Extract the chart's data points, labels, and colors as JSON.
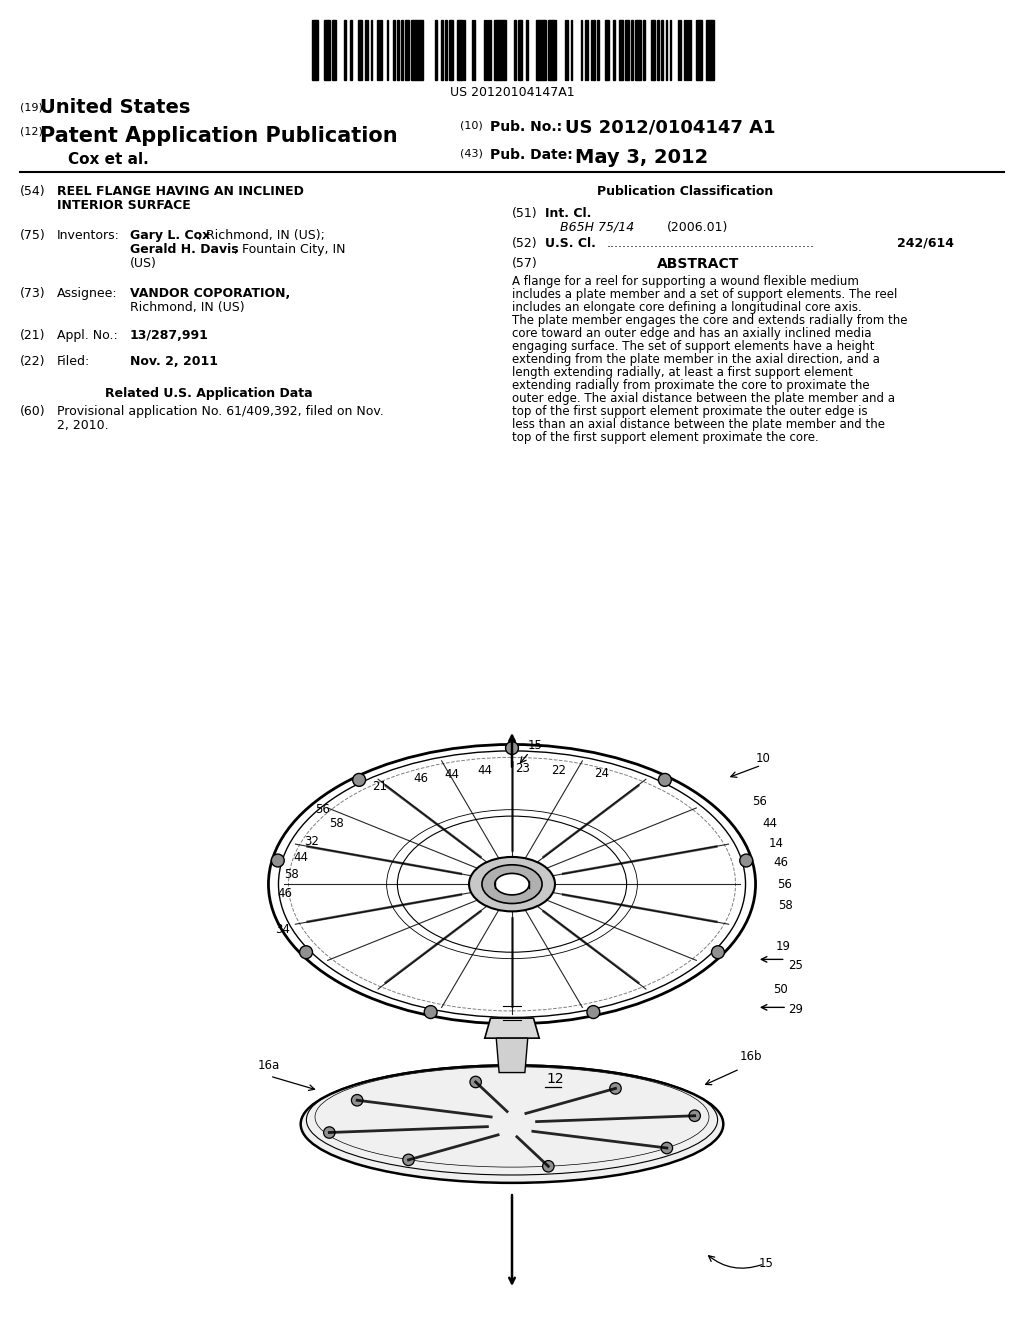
{
  "background_color": "#ffffff",
  "barcode_text": "US 20120104147A1",
  "header": {
    "line19": "United States",
    "line12": "Patent Application Publication",
    "line10_label": "Pub. No.:",
    "line10_value": "US 2012/0104147 A1",
    "author": "Cox et al.",
    "line43_label": "Pub. Date:",
    "line43_value": "May 3, 2012"
  },
  "left_col": {
    "line54_title_1": "REEL FLANGE HAVING AN INCLINED",
    "line54_title_2": "INTERIOR SURFACE",
    "line75_key": "Inventors:",
    "line75_name1": "Gary L. Cox",
    "line75_rest1": ", Richmond, IN (US);",
    "line75_name2": "Gerald H. Davis",
    "line75_rest2": ", Fountain City, IN",
    "line75_rest3": "(US)",
    "line73_key": "Assignee:",
    "line73_val1": "VANDOR COPORATION,",
    "line73_val2": "Richmond, IN (US)",
    "line21_key": "Appl. No.:",
    "line21_val": "13/287,991",
    "line22_key": "Filed:",
    "line22_val": "Nov. 2, 2011",
    "related_header": "Related U.S. Application Data",
    "line60_val1": "Provisional application No. 61/409,392, filed on Nov.",
    "line60_val2": "2, 2010."
  },
  "right_col": {
    "pub_class_header": "Publication Classification",
    "line51_key": "Int. Cl.",
    "line51_subkey": "B65H 75/14",
    "line51_subvalue": "(2006.01)",
    "line52_key": "U.S. Cl.",
    "line52_dots": "....................................................",
    "line52_value": "242/614",
    "line57_key": "ABSTRACT",
    "abstract": "A flange for a reel for supporting a wound flexible medium includes a plate member and a set of support elements. The reel includes an elongate core defining a longitudinal core axis. The plate member engages the core and extends radially from the core toward an outer edge and has an axially inclined media engaging surface. The set of support elements have a height extending from the plate member in the axial direction, and a length extending radially, at least a first support element extending radially from proximate the core to proximate the outer edge. The axial distance between the plate member and a top of the first support element proximate the outer edge is less than an axial distance between the plate member and the top of the first support element proximate the core."
  },
  "text_color": "#000000"
}
